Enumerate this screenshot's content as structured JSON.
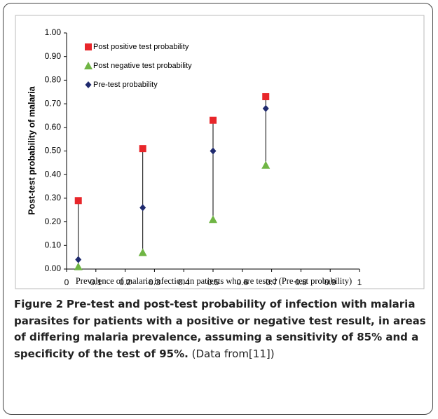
{
  "chart_data": {
    "type": "scatter",
    "x": [
      0.04,
      0.26,
      0.5,
      0.68
    ],
    "series": [
      {
        "name": "Post positive test probability",
        "color": "#e8262a",
        "marker": "square",
        "values": [
          0.29,
          0.51,
          0.63,
          0.73
        ]
      },
      {
        "name": "Post negative test probability",
        "color": "#6fb544",
        "marker": "triangle",
        "values": [
          0.01,
          0.07,
          0.21,
          0.44
        ]
      },
      {
        "name": "Pre-test probability",
        "color": "#1f2a6e",
        "marker": "diamond",
        "values": [
          0.04,
          0.26,
          0.5,
          0.68
        ]
      }
    ],
    "connect_series": true,
    "xlabel": "Prevalence of malaria infection in patients who are tested (Pre-test probability)",
    "ylabel": "Post-test probability of malaria",
    "xlim": [
      0,
      1
    ],
    "xticks": [
      0,
      0.1,
      0.2,
      0.3,
      0.4,
      0.5,
      0.6,
      0.7,
      0.8,
      0.9,
      1
    ],
    "ylim": [
      0,
      1
    ],
    "yticks": [
      {
        "value": 0,
        "label": "0.00"
      },
      {
        "value": 0.1,
        "label": "0.10"
      },
      {
        "value": 0.2,
        "label": "0.20"
      },
      {
        "value": 0.3,
        "label": "0.30"
      },
      {
        "value": 0.4,
        "label": "0.40"
      },
      {
        "value": 0.5,
        "label": "0.50"
      },
      {
        "value": 0.6,
        "label": "0.60"
      },
      {
        "value": 0.7,
        "label": "0.70"
      },
      {
        "value": 0.8,
        "label": "0.80"
      },
      {
        "value": 0.9,
        "label": "0.90"
      },
      {
        "value": 1,
        "label": "1.00"
      }
    ],
    "grid": false,
    "legend": "top-left"
  },
  "caption": {
    "label": "Figure 2",
    "bold_text": "Pre-test and post-test probability of infection with malaria parasites for patients with a positive or negative test result, in areas of differing malaria prevalence, assuming a sensitivity of 85% and a specificity of the test of 95%.",
    "text": "(Data from[11])"
  }
}
